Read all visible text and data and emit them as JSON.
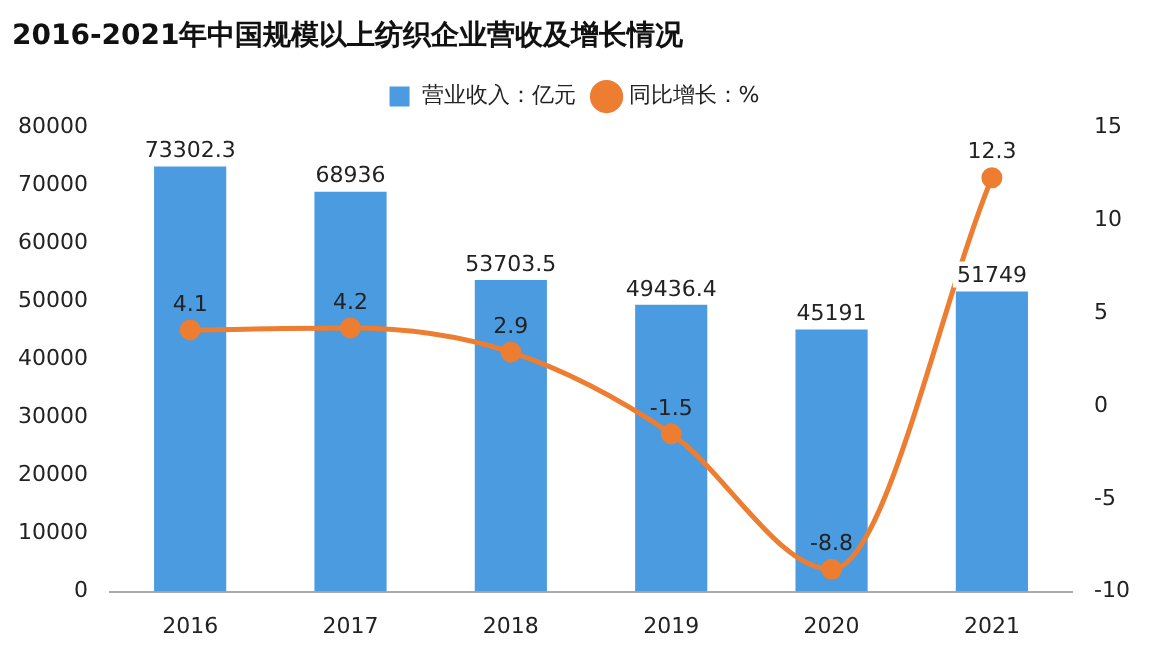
{
  "chart_data": {
    "type": "bar",
    "title": "2016-2021年中国规模以上纺织企业营收及增长情况",
    "categories": [
      "2016",
      "2017",
      "2018",
      "2019",
      "2020",
      "2021"
    ],
    "series": [
      {
        "name": "营业收入：亿元",
        "color": "#4a9be0",
        "values": [
          73302.3,
          68936,
          53703.5,
          49436.4,
          45191,
          51749
        ]
      },
      {
        "name": "同比增长：%",
        "type": "line",
        "axis": "y2",
        "color": "#ed7d31",
        "values": [
          4.1,
          4.2,
          2.9,
          -1.5,
          -8.8,
          12.3
        ]
      }
    ],
    "ylim": [
      0,
      80000
    ],
    "yticks": [
      0,
      10000,
      20000,
      30000,
      40000,
      50000,
      60000,
      70000,
      80000
    ],
    "y2lim": [
      -10,
      15
    ],
    "y2ticks": [
      -10,
      -5,
      0,
      5,
      10,
      15
    ],
    "data_labels": true,
    "legend": "top",
    "grid": false,
    "marker": "circle",
    "line_style": "solid"
  }
}
